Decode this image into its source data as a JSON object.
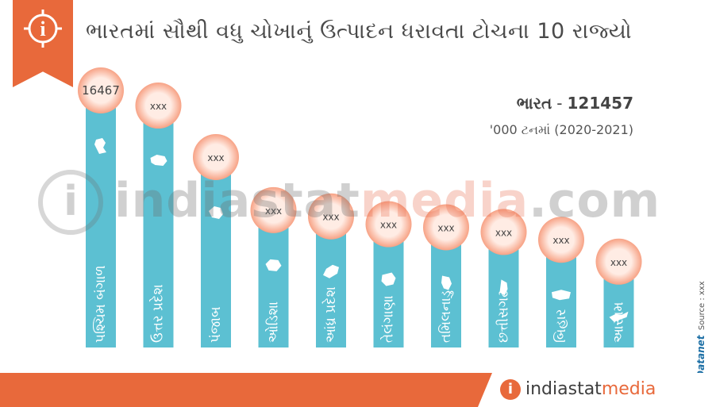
{
  "header": {
    "title": "ભારતમાં સૌથી વધુ ચોખાનું ઉત્પાદન ધરાવતા ટોચના 10 રાજ્યો",
    "info_icon": "info-icon"
  },
  "summary": {
    "label": "ભારત",
    "total": "121457",
    "unit": "'000 ટનમાં (2020-2021)"
  },
  "watermark": {
    "part1": "indiastat",
    "part2": "media",
    "part3": ".com"
  },
  "footer": {
    "brand_part1": "indiastat",
    "brand_part2": "media",
    "credit_brand": "Datanet",
    "credit_source": "Source : xxx",
    "copyright": "©"
  },
  "colors": {
    "bar": "#5cc0d2",
    "accent": "#e8693b",
    "bubble_fill": "#ffece4",
    "bubble_glow": "#f7a285",
    "map_fill": "#ffffff"
  },
  "chart_data": {
    "type": "bar",
    "title": "ભારતમાં સૌથી વધુ ચોખાનું ઉત્પાદન ધરાવતા ટોચના 10 રાજ્યો",
    "categories": [
      "પશ્ચિમ બંગાળ",
      "ઉત્તર પ્રદેશ",
      "પંજાબ",
      "ઓડિશા",
      "આંધ્ર પ્રદેશ",
      "તેલંગાણા",
      "તમિલનાડુ",
      "છત્તીસગઢ",
      "બિહાર",
      "આસામ"
    ],
    "value_labels": [
      "16467",
      "xxx",
      "xxx",
      "xxx",
      "xxx",
      "xxx",
      "xxx",
      "xxx",
      "xxx",
      "xxx"
    ],
    "values": [
      16467,
      15500,
      12200,
      8800,
      8400,
      7900,
      7700,
      7400,
      6900,
      5500
    ],
    "unit": "'000 ટનમાં (2020-2021)",
    "xlabel": "",
    "ylabel": "",
    "ylim": [
      0,
      16467
    ],
    "grid": false,
    "legend": "none"
  }
}
